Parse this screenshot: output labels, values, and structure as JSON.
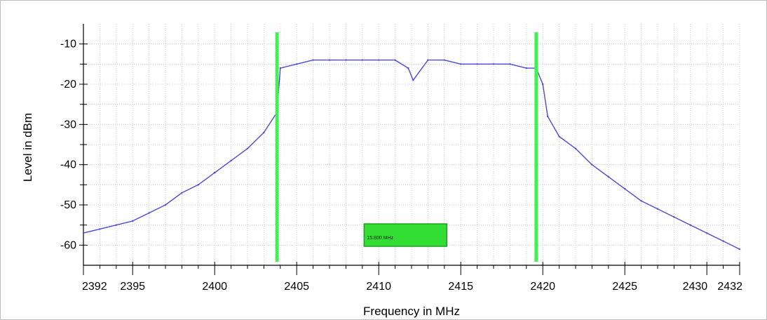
{
  "chart_data": {
    "type": "line",
    "title": "",
    "xlabel": "Frequency in MHz",
    "ylabel": "Level in dBm",
    "xlim": [
      2392,
      2432
    ],
    "ylim": [
      -65,
      -5
    ],
    "x_ticks": [
      2392,
      2395,
      2400,
      2405,
      2410,
      2415,
      2420,
      2425,
      2430,
      2432
    ],
    "y_ticks": [
      -10,
      -20,
      -30,
      -40,
      -50,
      -60
    ],
    "grid": true,
    "series": [
      {
        "color": "#4a4ad8",
        "x": [
          2392,
          2393,
          2394,
          2395,
          2396,
          2397,
          2398,
          2399,
          2400,
          2401,
          2402,
          2403,
          2403.8,
          2404,
          2405,
          2406,
          2407,
          2408,
          2409,
          2410,
          2411,
          2411.8,
          2412.1,
          2413,
          2414,
          2415,
          2416,
          2417,
          2418,
          2419,
          2419.6,
          2420,
          2420.3,
          2421,
          2422,
          2423,
          2424,
          2425,
          2426,
          2427,
          2428,
          2429,
          2430,
          2431,
          2432
        ],
        "values": [
          -57,
          -56,
          -55,
          -54,
          -52,
          -50,
          -47,
          -45,
          -42,
          -39,
          -36,
          -32,
          -27,
          -16,
          -15,
          -14,
          -14,
          -14,
          -14,
          -14,
          -14,
          -16,
          -19,
          -14,
          -14,
          -15,
          -15,
          -15,
          -15,
          -16,
          -16,
          -20,
          -28,
          -33,
          -36,
          -40,
          -43,
          -46,
          -49,
          -51,
          -53,
          -55,
          -57,
          -59,
          -61
        ]
      }
    ],
    "markers": [
      {
        "x": 2403.8,
        "color": "#44ee55"
      },
      {
        "x": 2419.6,
        "color": "#44ee55"
      }
    ],
    "annotation": {
      "text": "15.800 MHz",
      "x": 2412.1,
      "y": -57.5,
      "color": "#33dd33"
    }
  }
}
